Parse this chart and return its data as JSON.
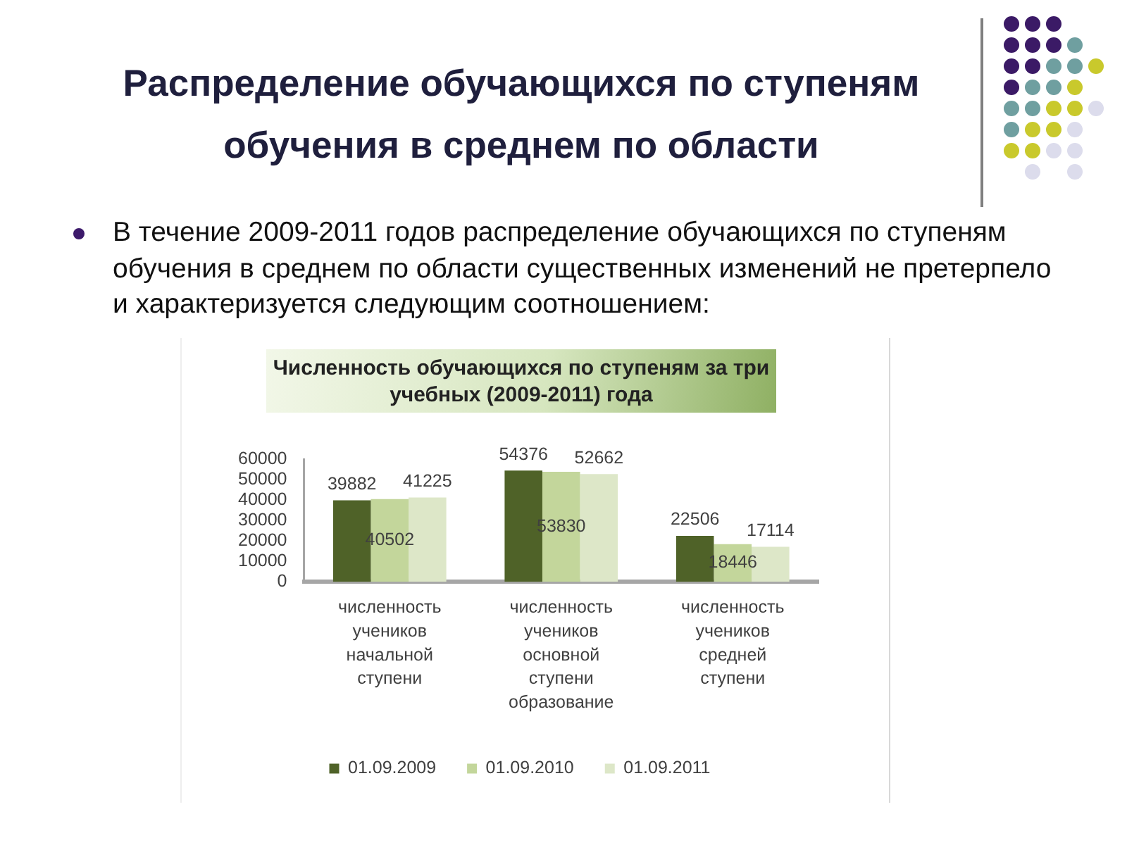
{
  "chart_data": {
    "type": "bar",
    "title": "Распределение обучающихся по ступеням обучения в среднем по области",
    "subtitle": "Численность обучающихся по ступеням за три учебных (2009-2011) года",
    "annotations": [
      "В течение 2009-2011 годов распределение обучающихся по ступеням обучения в среднем по области существенных изменений не претерпело и характеризуется следующим соотношением:"
    ],
    "categories": [
      "численность учеников начальной ступени",
      "численность учеников основной ступени образование",
      "численность учеников средней ступени"
    ],
    "series": [
      {
        "name": "01.09.2009",
        "color": "#4f6228",
        "values": [
          39882,
          54376,
          22506
        ]
      },
      {
        "name": "01.09.2010",
        "color": "#c3d69b",
        "values": [
          40502,
          53830,
          18446
        ]
      },
      {
        "name": "01.09.2011",
        "color": "#dde7c8",
        "values": [
          41225,
          52662,
          17114
        ]
      }
    ],
    "ylim": [
      0,
      60000
    ],
    "yticks": [
      0,
      10000,
      20000,
      30000,
      40000,
      50000,
      60000
    ],
    "data_labels": true,
    "grid": false,
    "legend": "bottom"
  }
}
